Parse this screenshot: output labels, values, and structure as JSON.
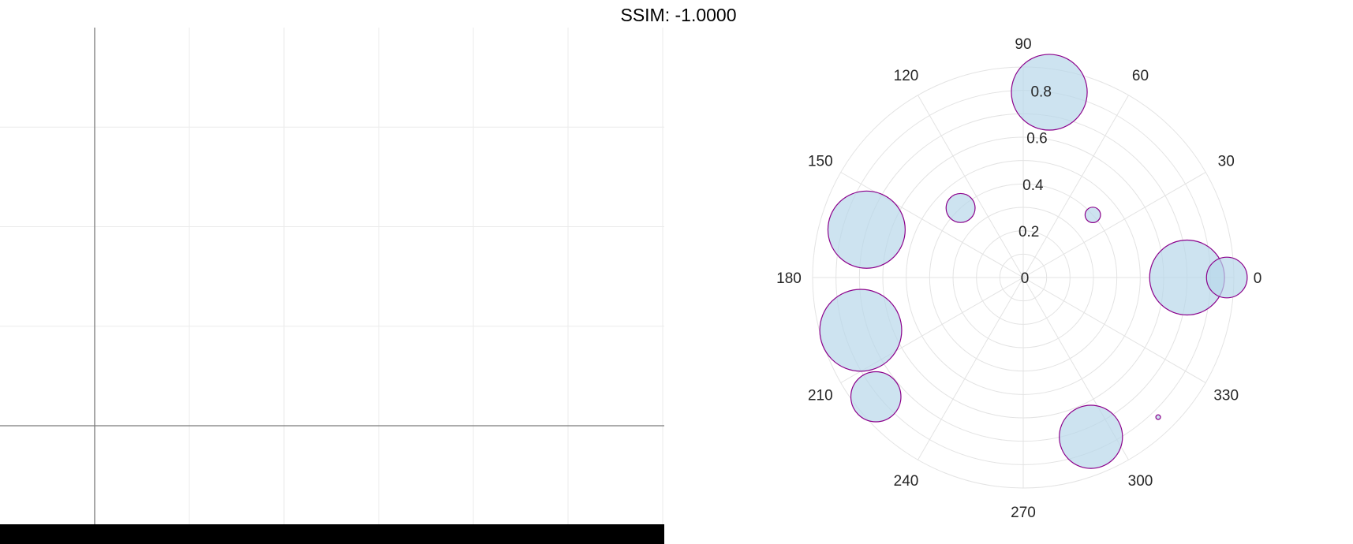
{
  "figure": {
    "title": "SSIM: -1.0000"
  },
  "chart_data": [
    {
      "type": "line",
      "panel": "left",
      "empty": true,
      "grid": true,
      "x_gridlines": 7,
      "y_gridlines": 5
    },
    {
      "type": "scatter",
      "panel": "right",
      "coordinate_system": "polar",
      "theta_unit": "degrees",
      "rlim": [
        0,
        0.9
      ],
      "rticks": [
        "0",
        "0.2",
        "0.4",
        "0.6",
        "0.8"
      ],
      "theta_ticks": [
        "0",
        "30",
        "60",
        "90",
        "120",
        "150",
        "180",
        "210",
        "240",
        "270",
        "300",
        "330"
      ],
      "grid": true,
      "marker_face_color": "#B8D7EA",
      "marker_edge_color": "#8B008B",
      "points": [
        {
          "theta": 0,
          "r": 0.7,
          "size": 0.16
        },
        {
          "theta": 0,
          "r": 0.87,
          "size": 0.087
        },
        {
          "theta": 42,
          "r": 0.4,
          "size": 0.033
        },
        {
          "theta": 82,
          "r": 0.8,
          "size": 0.162
        },
        {
          "theta": 132,
          "r": 0.4,
          "size": 0.062
        },
        {
          "theta": 163,
          "r": 0.7,
          "size": 0.165
        },
        {
          "theta": 198,
          "r": 0.73,
          "size": 0.175
        },
        {
          "theta": 219,
          "r": 0.81,
          "size": 0.107
        },
        {
          "theta": 293,
          "r": 0.74,
          "size": 0.135
        },
        {
          "theta": 314,
          "r": 0.83,
          "size": 0.01
        }
      ]
    }
  ]
}
